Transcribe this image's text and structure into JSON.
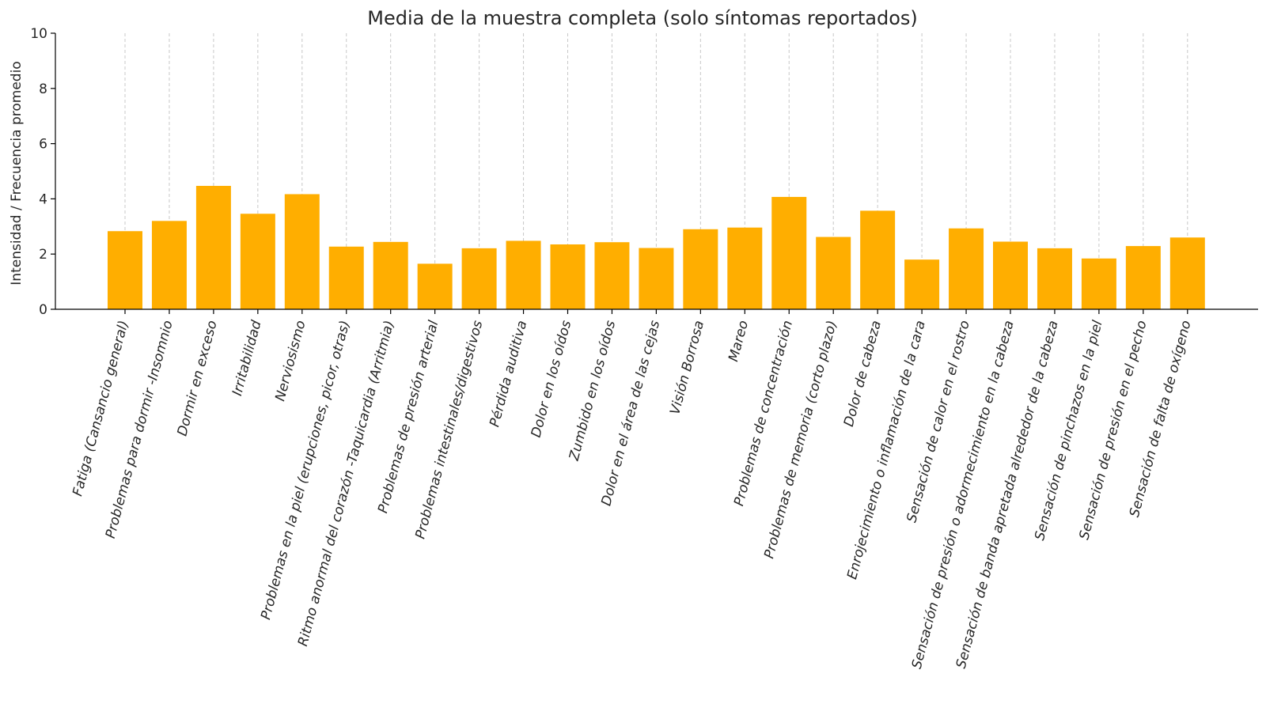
{
  "chart_data": {
    "type": "bar",
    "title": "Media de la muestra completa (solo síntomas reportados)",
    "xlabel": "",
    "ylabel": "Intensidad / Frecuencia promedio",
    "ylim": [
      0,
      10
    ],
    "yticks": [
      0,
      2,
      4,
      6,
      8,
      10
    ],
    "grid": "vertical dashed",
    "bar_color": "#ffae00",
    "categories": [
      "Fatiga (Cansancio general)",
      "Problemas para dormir -Insomnio",
      "Dormir en exceso",
      "Irritabilidad",
      "Nerviosismo",
      "Problemas en la piel (erupciones, picor, otras)",
      "Ritmo anormal del corazón -Taquicardia (Arritmia)",
      "Problemas de presión arterial",
      "Problemas intestinales/digestivos",
      "Pérdida auditiva",
      "Dolor en los oídos",
      "Zumbido en los oídos",
      "Dolor en el área de las cejas",
      "Visión Borrosa",
      "Mareo",
      "Problemas de concentración",
      "Problemas de memoria (corto plazo)",
      "Dolor de cabeza",
      "Enrojecimiento o inflamación de la cara",
      "Sensación de calor en el rostro",
      "Sensación de presión o adormecimiento en la cabeza",
      "Sensación de banda apretada alrededor de la cabeza",
      "Sensación de pinchazos en la piel",
      "Sensación de presión en el pecho",
      "Sensación de falta de oxígeno"
    ],
    "values": [
      2.83,
      3.2,
      4.47,
      3.46,
      4.17,
      2.27,
      2.44,
      1.65,
      2.21,
      2.48,
      2.35,
      2.43,
      2.22,
      2.9,
      2.96,
      4.07,
      2.62,
      3.57,
      1.8,
      2.93,
      2.45,
      2.21,
      1.84,
      2.29,
      2.6
    ]
  }
}
